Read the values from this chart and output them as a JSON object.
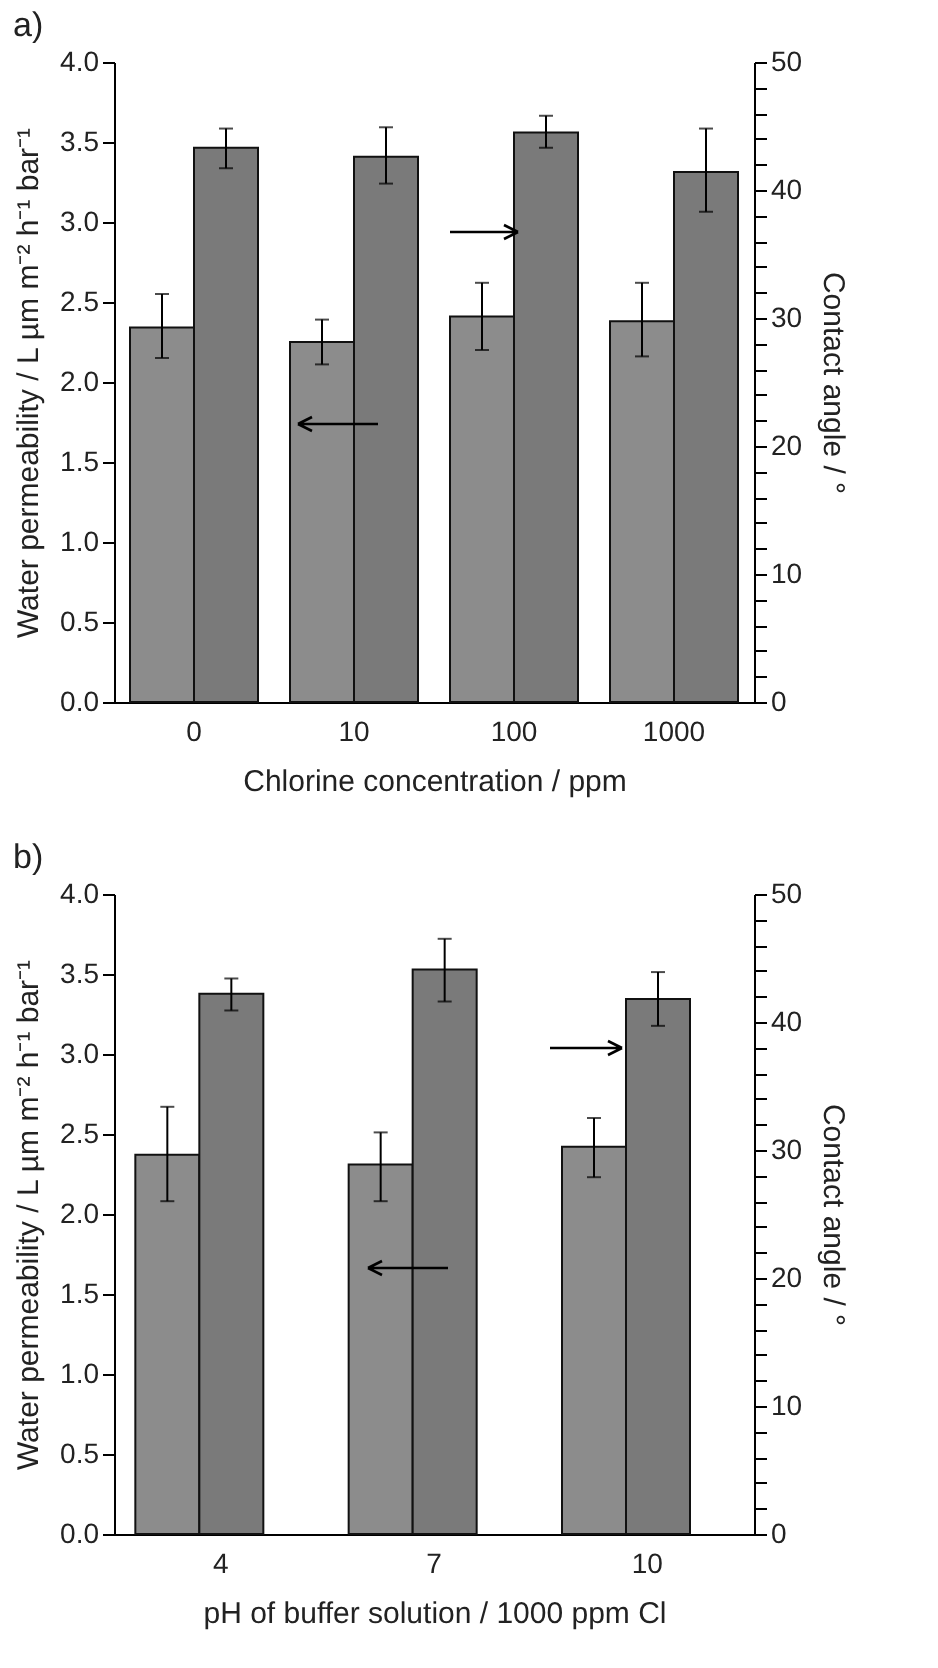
{
  "chart_data": [
    {
      "type": "bar",
      "title": "a)",
      "xlabel": "Chlorine concentration / ppm",
      "ylabel": "Water permeability / L µm m⁻² h⁻¹ bar⁻¹",
      "y2label": "Contact angle / °",
      "categories": [
        "0",
        "10",
        "100",
        "1000"
      ],
      "series": [
        {
          "color": "#8c8c8c",
          "values": [
            2.34,
            2.25,
            2.41,
            2.38
          ],
          "errors": [
            [
              2.15,
              2.55
            ],
            [
              2.11,
              2.39
            ],
            [
              2.2,
              2.62
            ],
            [
              2.16,
              2.62
            ]
          ]
        },
        {
          "color": "#7a7a7a",
          "axis": "y2",
          "values": [
            43.3,
            42.6,
            44.5,
            41.4
          ],
          "errors": [
            [
              41.7,
              44.8
            ],
            [
              40.5,
              44.9
            ],
            [
              43.3,
              45.8
            ],
            [
              38.3,
              44.8
            ]
          ]
        }
      ],
      "ylim": [
        0,
        4
      ],
      "yticks": [
        {
          "value": 0,
          "label": "0.0"
        },
        {
          "value": 0.5,
          "label": "0.5"
        },
        {
          "value": 1,
          "label": "1.0"
        },
        {
          "value": 1.5,
          "label": "1.5"
        },
        {
          "value": 2,
          "label": "2.0"
        },
        {
          "value": 2.5,
          "label": "2.5"
        },
        {
          "value": 3,
          "label": "3.0"
        },
        {
          "value": 3.5,
          "label": "3.5"
        },
        {
          "value": 4,
          "label": "4.0"
        }
      ],
      "y2lim": [
        0,
        50
      ],
      "y2ticks": [
        0,
        {
          "value": 2,
          "label": null
        },
        {
          "value": 4,
          "label": null
        },
        {
          "value": 6,
          "label": null
        },
        {
          "value": 8,
          "label": null
        },
        10,
        {
          "value": 12,
          "label": null
        },
        {
          "value": 14,
          "label": null
        },
        {
          "value": 16,
          "label": null
        },
        {
          "value": 18,
          "label": null
        },
        20,
        {
          "value": 22,
          "label": null
        },
        {
          "value": 24,
          "label": null
        },
        {
          "value": 26,
          "label": null
        },
        {
          "value": 28,
          "label": null
        },
        30,
        {
          "value": 32,
          "label": null
        },
        {
          "value": 34,
          "label": null
        },
        {
          "value": 36,
          "label": null
        },
        {
          "value": 38,
          "label": null
        },
        40,
        {
          "value": 42,
          "label": null
        },
        {
          "value": 44,
          "label": null
        },
        {
          "value": 46,
          "label": null
        },
        {
          "value": 48,
          "label": null
        },
        50
      ]
    },
    {
      "type": "bar",
      "title": "b)",
      "xlabel": "pH of buffer solution / 1000 ppm Cl",
      "ylabel": "Water permeability / L µm m⁻² h⁻¹ bar⁻¹",
      "y2label": "Contact angle / °",
      "categories": [
        "4",
        "7",
        "10"
      ],
      "series": [
        {
          "color": "#8c8c8c",
          "values": [
            2.37,
            2.31,
            2.42
          ],
          "errors": [
            [
              2.08,
              2.67
            ],
            [
              2.08,
              2.51
            ],
            [
              2.23,
              2.6
            ]
          ]
        },
        {
          "color": "#7a7a7a",
          "axis": "y2",
          "values": [
            42.2,
            44.1,
            41.8
          ],
          "errors": [
            [
              40.9,
              43.4
            ],
            [
              41.6,
              46.5
            ],
            [
              39.7,
              43.9
            ]
          ]
        }
      ],
      "ylim": [
        0,
        4
      ],
      "yticks": [
        {
          "value": 0,
          "label": "0.0"
        },
        {
          "value": 0.5,
          "label": "0.5"
        },
        {
          "value": 1,
          "label": "1.0"
        },
        {
          "value": 1.5,
          "label": "1.5"
        },
        {
          "value": 2,
          "label": "2.0"
        },
        {
          "value": 2.5,
          "label": "2.5"
        },
        {
          "value": 3,
          "label": "3.0"
        },
        {
          "value": 3.5,
          "label": "3.5"
        },
        {
          "value": 4,
          "label": "4.0"
        }
      ],
      "y2lim": [
        0,
        50
      ],
      "y2ticks": [
        0,
        {
          "value": 2,
          "label": null
        },
        {
          "value": 4,
          "label": null
        },
        {
          "value": 6,
          "label": null
        },
        {
          "value": 8,
          "label": null
        },
        10,
        {
          "value": 12,
          "label": null
        },
        {
          "value": 14,
          "label": null
        },
        {
          "value": 16,
          "label": null
        },
        {
          "value": 18,
          "label": null
        },
        20,
        {
          "value": 22,
          "label": null
        },
        {
          "value": 24,
          "label": null
        },
        {
          "value": 26,
          "label": null
        },
        {
          "value": 28,
          "label": null
        },
        30,
        {
          "value": 32,
          "label": null
        },
        {
          "value": 34,
          "label": null
        },
        {
          "value": 36,
          "label": null
        },
        {
          "value": 38,
          "label": null
        },
        40,
        {
          "value": 42,
          "label": null
        },
        {
          "value": 44,
          "label": null
        },
        {
          "value": 46,
          "label": null
        },
        {
          "value": 48,
          "label": null
        },
        50
      ]
    }
  ]
}
